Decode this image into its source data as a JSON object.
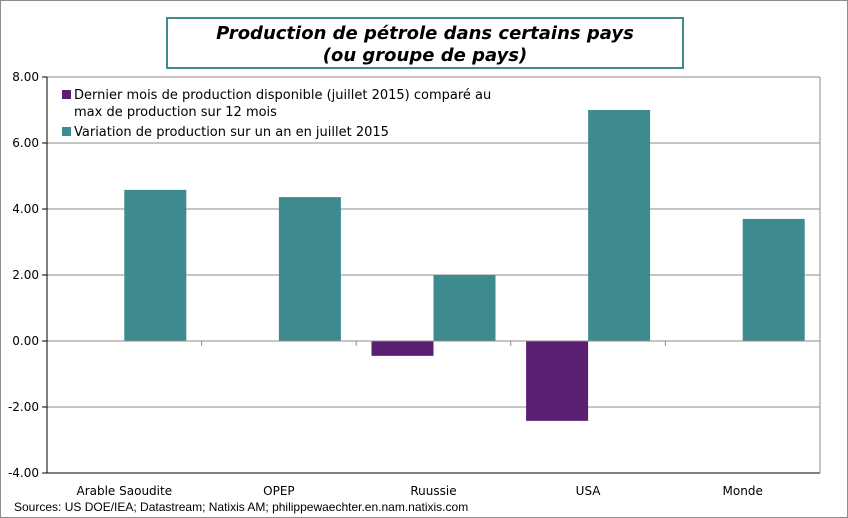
{
  "chart_data": {
    "type": "bar",
    "title": [
      "Production de pétrole dans certains pays",
      "(ou groupe de pays)"
    ],
    "categories": [
      "Arable Saoudite",
      "OPEP",
      "Ruussie",
      "USA",
      "Monde"
    ],
    "series": [
      {
        "name": "Dernier mois de production disponible (juillet 2015) comparé au max de production sur 12 mois",
        "name_lines": [
          "Dernier mois de production disponible (juillet 2015) comparé au",
          "max de production sur 12 mois"
        ],
        "color": "#5a1e72",
        "values": [
          0,
          0,
          -0.45,
          -2.42,
          0
        ]
      },
      {
        "name": "Variation de production sur un an en juillet 2015",
        "color": "#3e8b8f",
        "values": [
          4.58,
          4.36,
          2.0,
          7.0,
          3.7
        ]
      }
    ],
    "ylim": [
      -4,
      8
    ],
    "yticks": [
      "-4.00",
      "-2.00",
      "0.00",
      "2.00",
      "4.00",
      "6.00",
      "8.00"
    ],
    "grid": true,
    "legend_position": "top-left",
    "xlabel": "",
    "ylabel": ""
  },
  "source": "Sources: US DOE/IEA; Datastream; Natixis AM; philippewaechter.en.nam.natixis.com"
}
